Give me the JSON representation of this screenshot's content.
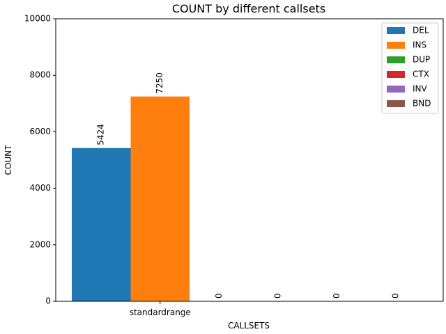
{
  "chart_data": {
    "type": "bar",
    "title": "COUNT by different callsets",
    "xlabel": "CALLSETS",
    "ylabel": "COUNT",
    "categories": [
      "standardrange"
    ],
    "ylim": [
      0,
      10000
    ],
    "yticks": [
      0,
      2000,
      4000,
      6000,
      8000,
      10000
    ],
    "grid": false,
    "legend_position": "top-right",
    "series": [
      {
        "name": "DEL",
        "values": [
          5424
        ],
        "label": "5424",
        "color": "#1f77b4"
      },
      {
        "name": "INS",
        "values": [
          7250
        ],
        "label": "7250",
        "color": "#ff7f0e"
      },
      {
        "name": "DUP",
        "values": [
          0
        ],
        "label": "0",
        "color": "#2ca02c"
      },
      {
        "name": "CTX",
        "values": [
          0
        ],
        "label": "0",
        "color": "#d62728"
      },
      {
        "name": "INV",
        "values": [
          0
        ],
        "label": "0",
        "color": "#9467bd"
      },
      {
        "name": "BND",
        "values": [
          0
        ],
        "label": "0",
        "color": "#8c564b"
      }
    ]
  }
}
